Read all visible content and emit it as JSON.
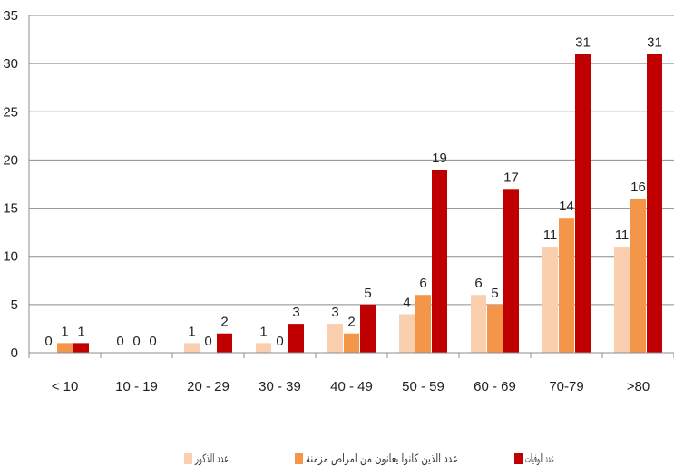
{
  "chart_data": {
    "type": "bar",
    "categories": [
      "<10",
      "10-19",
      "20-29",
      "30-39",
      "40-49",
      "50-59",
      "60-69",
      "70-79",
      ">80"
    ],
    "category_labels": [
      "< 10",
      "10 - 19",
      "20 - 29",
      "30 - 39",
      "40 - 49",
      "50 - 59",
      "60 - 69",
      "70-79",
      ">80"
    ],
    "series": [
      {
        "name": "عدد الذكور",
        "color": "#f9cfb0",
        "values": [
          0,
          0,
          1,
          1,
          3,
          4,
          6,
          11,
          11
        ]
      },
      {
        "name": "عدد الذين كانوا يعانون من امراض مزمنة",
        "color": "#f4964a",
        "values": [
          1,
          0,
          0,
          0,
          2,
          6,
          5,
          14,
          16
        ]
      },
      {
        "name": "عدد الوفيات",
        "color": "#c00000",
        "values": [
          1,
          0,
          2,
          3,
          5,
          19,
          17,
          31,
          31
        ]
      }
    ],
    "ylim": [
      0,
      35
    ],
    "yticks": [
      "0",
      "5",
      "10",
      "15",
      "20",
      "25",
      "30",
      "35"
    ],
    "grid": true,
    "legend_position": "bottom",
    "title": "",
    "xlabel": "",
    "ylabel": ""
  }
}
